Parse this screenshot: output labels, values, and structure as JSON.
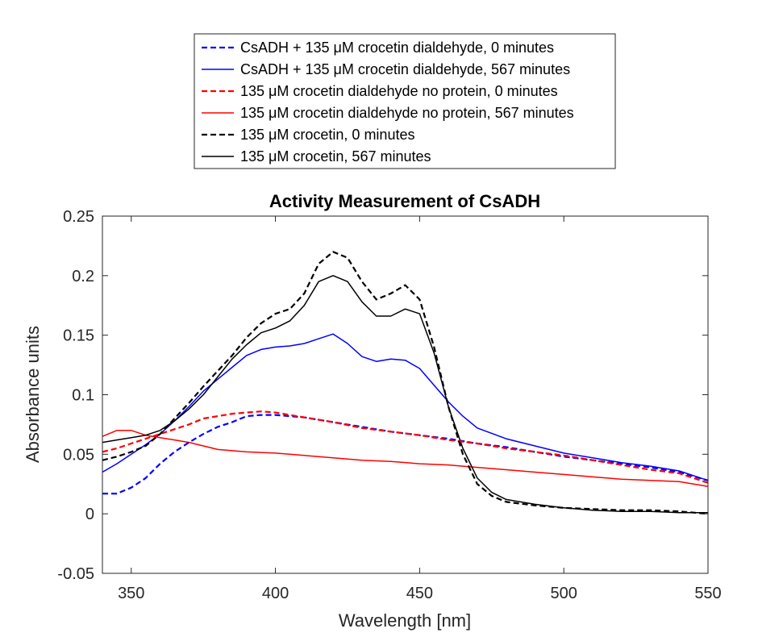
{
  "chart_data": {
    "type": "line",
    "title": "Activity Measurement of CsADH",
    "xlabel": "Wavelength [nm]",
    "ylabel": "Absorbance units",
    "xlim": [
      340,
      550
    ],
    "ylim": [
      -0.05,
      0.25
    ],
    "xticks": [
      350,
      400,
      450,
      500,
      550
    ],
    "yticks": [
      -0.05,
      0,
      0.05,
      0.1,
      0.15,
      0.2,
      0.25
    ],
    "ytick_labels": [
      "-0.05",
      "0",
      "0.05",
      "0.1",
      "0.15",
      "0.2",
      "0.25"
    ],
    "grid": false,
    "legend": "top, outside plot",
    "series": [
      {
        "name": "CsADH + 135 μM crocetin dialdehyde, 0 minutes",
        "color": "#0000ff",
        "dash": true,
        "x": [
          340,
          345,
          350,
          355,
          360,
          365,
          370,
          375,
          380,
          385,
          390,
          395,
          400,
          410,
          420,
          430,
          440,
          450,
          460,
          470,
          480,
          490,
          500,
          510,
          520,
          530,
          540,
          550
        ],
        "y": [
          0.017,
          0.017,
          0.022,
          0.03,
          0.042,
          0.052,
          0.06,
          0.067,
          0.073,
          0.077,
          0.082,
          0.083,
          0.083,
          0.081,
          0.077,
          0.073,
          0.069,
          0.066,
          0.063,
          0.059,
          0.056,
          0.052,
          0.048,
          0.045,
          0.042,
          0.039,
          0.035,
          0.028
        ]
      },
      {
        "name": "CsADH + 135 μM crocetin dialdehyde, 567 minutes",
        "color": "#0000ff",
        "dash": false,
        "x": [
          340,
          345,
          350,
          355,
          360,
          365,
          370,
          375,
          380,
          385,
          390,
          395,
          400,
          405,
          410,
          415,
          420,
          425,
          430,
          435,
          440,
          445,
          450,
          455,
          460,
          465,
          470,
          480,
          490,
          500,
          510,
          520,
          530,
          540,
          550
        ],
        "y": [
          0.035,
          0.042,
          0.05,
          0.058,
          0.067,
          0.078,
          0.09,
          0.103,
          0.113,
          0.123,
          0.133,
          0.138,
          0.14,
          0.141,
          0.143,
          0.147,
          0.151,
          0.143,
          0.132,
          0.128,
          0.13,
          0.129,
          0.122,
          0.108,
          0.094,
          0.082,
          0.072,
          0.063,
          0.057,
          0.051,
          0.047,
          0.043,
          0.04,
          0.036,
          0.028
        ]
      },
      {
        "name": "135 μM crocetin dialdehyde no protein, 0 minutes",
        "color": "#ff0000",
        "dash": true,
        "x": [
          340,
          345,
          350,
          355,
          360,
          365,
          370,
          375,
          380,
          385,
          390,
          395,
          400,
          410,
          420,
          430,
          440,
          450,
          460,
          470,
          480,
          490,
          500,
          510,
          520,
          530,
          540,
          550
        ],
        "y": [
          0.052,
          0.055,
          0.059,
          0.063,
          0.067,
          0.071,
          0.075,
          0.08,
          0.082,
          0.084,
          0.085,
          0.086,
          0.085,
          0.081,
          0.077,
          0.072,
          0.069,
          0.066,
          0.062,
          0.059,
          0.055,
          0.052,
          0.049,
          0.045,
          0.041,
          0.037,
          0.034,
          0.026
        ]
      },
      {
        "name": "135 μM crocetin dialdehyde no protein, 567 minutes",
        "color": "#ff0000",
        "dash": false,
        "x": [
          340,
          345,
          350,
          355,
          360,
          365,
          370,
          375,
          380,
          390,
          400,
          410,
          420,
          430,
          440,
          450,
          460,
          470,
          480,
          490,
          500,
          510,
          520,
          530,
          540,
          550
        ],
        "y": [
          0.065,
          0.07,
          0.07,
          0.066,
          0.064,
          0.062,
          0.06,
          0.057,
          0.054,
          0.052,
          0.051,
          0.049,
          0.047,
          0.045,
          0.044,
          0.042,
          0.041,
          0.039,
          0.037,
          0.035,
          0.033,
          0.031,
          0.029,
          0.028,
          0.027,
          0.023
        ]
      },
      {
        "name": "135 μM crocetin, 0 minutes",
        "color": "#000000",
        "dash": true,
        "x": [
          340,
          345,
          350,
          355,
          360,
          365,
          370,
          375,
          380,
          385,
          390,
          395,
          400,
          405,
          410,
          415,
          420,
          425,
          430,
          435,
          440,
          445,
          450,
          455,
          460,
          465,
          470,
          475,
          480,
          490,
          500,
          510,
          520,
          530,
          540,
          550
        ],
        "y": [
          0.045,
          0.048,
          0.052,
          0.057,
          0.067,
          0.08,
          0.093,
          0.107,
          0.12,
          0.133,
          0.148,
          0.16,
          0.168,
          0.172,
          0.185,
          0.21,
          0.22,
          0.215,
          0.195,
          0.18,
          0.185,
          0.192,
          0.18,
          0.14,
          0.09,
          0.05,
          0.025,
          0.015,
          0.01,
          0.007,
          0.005,
          0.004,
          0.003,
          0.003,
          0.002,
          0.0
        ]
      },
      {
        "name": "135 μM crocetin, 567 minutes",
        "color": "#000000",
        "dash": false,
        "x": [
          340,
          345,
          350,
          355,
          360,
          365,
          370,
          375,
          380,
          385,
          390,
          395,
          400,
          405,
          410,
          415,
          420,
          425,
          430,
          435,
          440,
          445,
          450,
          455,
          460,
          465,
          470,
          475,
          480,
          490,
          500,
          510,
          520,
          530,
          540,
          550
        ],
        "y": [
          0.06,
          0.062,
          0.064,
          0.066,
          0.07,
          0.078,
          0.088,
          0.1,
          0.115,
          0.13,
          0.142,
          0.152,
          0.156,
          0.162,
          0.175,
          0.195,
          0.2,
          0.195,
          0.178,
          0.166,
          0.166,
          0.172,
          0.168,
          0.135,
          0.09,
          0.055,
          0.03,
          0.018,
          0.012,
          0.008,
          0.005,
          0.003,
          0.002,
          0.002,
          0.001,
          0.001
        ]
      }
    ]
  }
}
